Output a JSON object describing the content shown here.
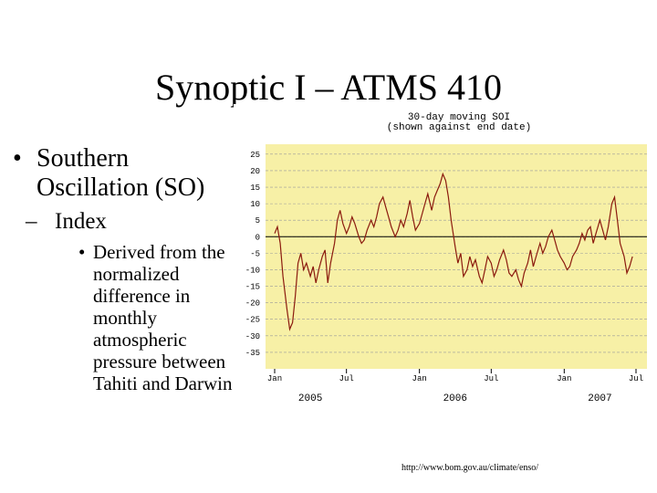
{
  "slide": {
    "title": "Synoptic I – ATMS 410",
    "bullet1": "Southern Oscillation (SO)",
    "bullet2": "Index",
    "bullet3": "Derived from the normalized difference in monthly atmospheric pressure between Tahiti and Darwin",
    "source_url": "http://www.bom.gov.au/climate/enso/"
  },
  "colors": {
    "plot_bg": "#f7f0a6",
    "line": "#8b1a0e",
    "grid": "#999999"
  },
  "chart_data": {
    "type": "line",
    "title": "30-day moving SOI",
    "subtitle": "(shown against end date)",
    "ylim": [
      -40,
      28
    ],
    "yticks": [
      25,
      20,
      15,
      10,
      5,
      0,
      -5,
      -10,
      -15,
      -20,
      -25,
      -30,
      -35
    ],
    "x_start": "2005-01",
    "x_end": "2007-07",
    "xtick_labels": [
      {
        "x": "2005-01",
        "label": "Jan"
      },
      {
        "x": "2005-07",
        "label": "Jul"
      },
      {
        "x": "2006-01",
        "label": "Jan"
      },
      {
        "x": "2006-07",
        "label": "Jul"
      },
      {
        "x": "2007-01",
        "label": "Jan"
      },
      {
        "x": "2007-07",
        "label": "Jul"
      }
    ],
    "year_labels": [
      {
        "x": "2005-04",
        "label": "2005"
      },
      {
        "x": "2006-04",
        "label": "2006"
      },
      {
        "x": "2007-04",
        "label": "2007"
      }
    ],
    "grid": true,
    "zero_line": true,
    "series": [
      {
        "points": [
          [
            "2005-01-01",
            1
          ],
          [
            "2005-01-08",
            3
          ],
          [
            "2005-01-15",
            -2
          ],
          [
            "2005-01-22",
            -12
          ],
          [
            "2005-02-01",
            -22
          ],
          [
            "2005-02-08",
            -28
          ],
          [
            "2005-02-15",
            -26
          ],
          [
            "2005-02-22",
            -18
          ],
          [
            "2005-03-01",
            -8
          ],
          [
            "2005-03-08",
            -5
          ],
          [
            "2005-03-15",
            -10
          ],
          [
            "2005-03-22",
            -8
          ],
          [
            "2005-04-01",
            -12
          ],
          [
            "2005-04-08",
            -9
          ],
          [
            "2005-04-15",
            -14
          ],
          [
            "2005-04-22",
            -10
          ],
          [
            "2005-05-01",
            -6
          ],
          [
            "2005-05-08",
            -4
          ],
          [
            "2005-05-15",
            -14
          ],
          [
            "2005-05-22",
            -8
          ],
          [
            "2005-06-01",
            -2
          ],
          [
            "2005-06-08",
            5
          ],
          [
            "2005-06-15",
            8
          ],
          [
            "2005-06-22",
            4
          ],
          [
            "2005-07-01",
            1
          ],
          [
            "2005-07-08",
            3
          ],
          [
            "2005-07-15",
            6
          ],
          [
            "2005-07-22",
            4
          ],
          [
            "2005-08-01",
            0
          ],
          [
            "2005-08-08",
            -2
          ],
          [
            "2005-08-15",
            -1
          ],
          [
            "2005-08-22",
            2
          ],
          [
            "2005-09-01",
            5
          ],
          [
            "2005-09-08",
            3
          ],
          [
            "2005-09-15",
            6
          ],
          [
            "2005-09-22",
            10
          ],
          [
            "2005-10-01",
            12
          ],
          [
            "2005-10-08",
            9
          ],
          [
            "2005-10-15",
            6
          ],
          [
            "2005-10-22",
            3
          ],
          [
            "2005-11-01",
            0
          ],
          [
            "2005-11-08",
            2
          ],
          [
            "2005-11-15",
            5
          ],
          [
            "2005-11-22",
            3
          ],
          [
            "2005-12-01",
            7
          ],
          [
            "2005-12-08",
            11
          ],
          [
            "2005-12-15",
            6
          ],
          [
            "2005-12-22",
            2
          ],
          [
            "2006-01-01",
            4
          ],
          [
            "2006-01-08",
            7
          ],
          [
            "2006-01-15",
            10
          ],
          [
            "2006-01-22",
            13
          ],
          [
            "2006-02-01",
            8
          ],
          [
            "2006-02-08",
            12
          ],
          [
            "2006-02-15",
            14
          ],
          [
            "2006-02-22",
            16
          ],
          [
            "2006-03-01",
            19
          ],
          [
            "2006-03-08",
            17
          ],
          [
            "2006-03-15",
            12
          ],
          [
            "2006-03-22",
            5
          ],
          [
            "2006-04-01",
            -3
          ],
          [
            "2006-04-08",
            -8
          ],
          [
            "2006-04-15",
            -5
          ],
          [
            "2006-04-22",
            -12
          ],
          [
            "2006-05-01",
            -10
          ],
          [
            "2006-05-08",
            -6
          ],
          [
            "2006-05-15",
            -9
          ],
          [
            "2006-05-22",
            -7
          ],
          [
            "2006-06-01",
            -12
          ],
          [
            "2006-06-08",
            -14
          ],
          [
            "2006-06-15",
            -10
          ],
          [
            "2006-06-22",
            -6
          ],
          [
            "2006-07-01",
            -8
          ],
          [
            "2006-07-08",
            -12
          ],
          [
            "2006-07-15",
            -10
          ],
          [
            "2006-07-22",
            -7
          ],
          [
            "2006-08-01",
            -4
          ],
          [
            "2006-08-08",
            -7
          ],
          [
            "2006-08-15",
            -11
          ],
          [
            "2006-08-22",
            -12
          ],
          [
            "2006-09-01",
            -10
          ],
          [
            "2006-09-08",
            -13
          ],
          [
            "2006-09-15",
            -15
          ],
          [
            "2006-09-22",
            -11
          ],
          [
            "2006-10-01",
            -8
          ],
          [
            "2006-10-08",
            -4
          ],
          [
            "2006-10-15",
            -9
          ],
          [
            "2006-10-22",
            -6
          ],
          [
            "2006-11-01",
            -2
          ],
          [
            "2006-11-08",
            -5
          ],
          [
            "2006-11-15",
            -3
          ],
          [
            "2006-11-22",
            0
          ],
          [
            "2006-12-01",
            2
          ],
          [
            "2006-12-08",
            -1
          ],
          [
            "2006-12-15",
            -4
          ],
          [
            "2006-12-22",
            -6
          ],
          [
            "2007-01-01",
            -8
          ],
          [
            "2007-01-08",
            -10
          ],
          [
            "2007-01-15",
            -9
          ],
          [
            "2007-01-22",
            -6
          ],
          [
            "2007-02-01",
            -4
          ],
          [
            "2007-02-08",
            -2
          ],
          [
            "2007-02-15",
            1
          ],
          [
            "2007-02-22",
            -1
          ],
          [
            "2007-03-01",
            2
          ],
          [
            "2007-03-08",
            3
          ],
          [
            "2007-03-15",
            -2
          ],
          [
            "2007-03-22",
            1
          ],
          [
            "2007-04-01",
            5
          ],
          [
            "2007-04-08",
            2
          ],
          [
            "2007-04-15",
            -1
          ],
          [
            "2007-04-22",
            3
          ],
          [
            "2007-05-01",
            10
          ],
          [
            "2007-05-08",
            12
          ],
          [
            "2007-05-15",
            5
          ],
          [
            "2007-05-22",
            -2
          ],
          [
            "2007-06-01",
            -6
          ],
          [
            "2007-06-08",
            -11
          ],
          [
            "2007-06-15",
            -9
          ],
          [
            "2007-06-22",
            -6
          ]
        ]
      }
    ]
  }
}
